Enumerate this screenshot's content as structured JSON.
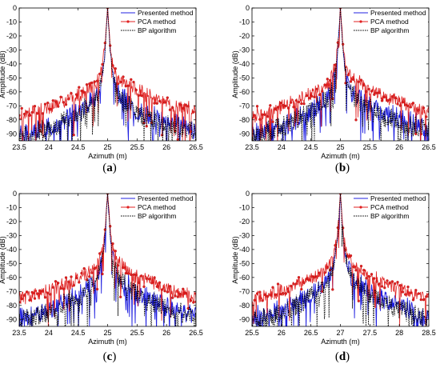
{
  "chart_data": [
    {
      "type": "line",
      "panel_label": "(a)",
      "panel_letter": "a",
      "xlabel": "Azimuth (m)",
      "ylabel": "Amplitude (dB)",
      "xlim": [
        23.5,
        26.5
      ],
      "ylim": [
        -95,
        0
      ],
      "xticks": [
        "23.5",
        "24",
        "24.5",
        "25",
        "25.5",
        "26",
        "26.5"
      ],
      "yticks": [
        "0",
        "-10",
        "-20",
        "-30",
        "-40",
        "-50",
        "-60",
        "-70",
        "-80",
        "-90"
      ],
      "peak": 25,
      "series": [
        {
          "name": "Presented method",
          "color": "#2020e0",
          "style": "solid",
          "x": [
            23.5,
            24.0,
            24.5,
            24.8,
            24.9,
            24.95,
            25.0,
            25.05,
            25.1,
            25.2,
            25.5,
            26.0,
            26.5
          ],
          "y": [
            -84,
            -78,
            -68,
            -57,
            -45,
            -32,
            0,
            -32,
            -45,
            -55,
            -66,
            -74,
            -80
          ]
        },
        {
          "name": "PCA method",
          "color": "#e02020",
          "style": "markers",
          "x": [
            23.5,
            24.0,
            24.5,
            24.8,
            24.9,
            24.95,
            25.0,
            25.05,
            25.1,
            25.2,
            25.5,
            26.0,
            26.5
          ],
          "y": [
            -72,
            -67,
            -58,
            -50,
            -40,
            -28,
            0,
            -29,
            -40,
            -47,
            -55,
            -63,
            -69
          ]
        },
        {
          "name": "BP algorithm",
          "color": "#000000",
          "style": "dotted",
          "x": [
            23.5,
            24.0,
            24.5,
            24.8,
            24.9,
            24.95,
            25.0,
            25.05,
            25.1,
            25.2,
            25.5,
            26.0,
            26.5
          ],
          "y": [
            -86,
            -79,
            -69,
            -58,
            -46,
            -33,
            0,
            -33,
            -46,
            -57,
            -68,
            -76,
            -82
          ]
        }
      ]
    },
    {
      "type": "line",
      "panel_label": "(b)",
      "panel_letter": "b",
      "xlabel": "Azimuth (m)",
      "ylabel": "Amplitude (dB)",
      "xlim": [
        23.5,
        26.5
      ],
      "ylim": [
        -95,
        0
      ],
      "xticks": [
        "23.5",
        "24",
        "24.5",
        "25",
        "25.5",
        "26",
        "26.5"
      ],
      "yticks": [
        "0",
        "-10",
        "-20",
        "-30",
        "-40",
        "-50",
        "-60",
        "-70",
        "-80",
        "-90"
      ],
      "peak": 25,
      "series": [
        {
          "name": "Presented method",
          "color": "#2020e0",
          "style": "solid",
          "x": [
            23.5,
            24.0,
            24.5,
            24.8,
            24.9,
            24.95,
            25.0,
            25.05,
            25.1,
            25.2,
            25.5,
            26.0,
            26.5
          ],
          "y": [
            -83,
            -77,
            -67,
            -56,
            -44,
            -31,
            0,
            -31,
            -44,
            -54,
            -64,
            -72,
            -79
          ]
        },
        {
          "name": "PCA method",
          "color": "#e02020",
          "style": "markers",
          "x": [
            23.5,
            24.0,
            24.5,
            24.8,
            24.9,
            24.95,
            25.0,
            25.05,
            25.1,
            25.2,
            25.5,
            26.0,
            26.5
          ],
          "y": [
            -73,
            -66,
            -57,
            -49,
            -39,
            -27,
            0,
            -28,
            -39,
            -46,
            -54,
            -63,
            -70
          ]
        },
        {
          "name": "BP algorithm",
          "color": "#000000",
          "style": "dotted",
          "x": [
            23.5,
            24.0,
            24.5,
            24.8,
            24.9,
            24.95,
            25.0,
            25.05,
            25.1,
            25.2,
            25.5,
            26.0,
            26.5
          ],
          "y": [
            -85,
            -78,
            -68,
            -57,
            -45,
            -32,
            0,
            -32,
            -45,
            -56,
            -66,
            -75,
            -81
          ]
        }
      ]
    },
    {
      "type": "line",
      "panel_label": "(c)",
      "panel_letter": "c",
      "xlabel": "Azimuth (m)",
      "ylabel": "Amplitude (dB)",
      "xlim": [
        23.5,
        26.5
      ],
      "ylim": [
        -95,
        0
      ],
      "xticks": [
        "23.5",
        "24",
        "24.5",
        "25",
        "25.5",
        "26",
        "26.5"
      ],
      "yticks": [
        "0",
        "-10",
        "-20",
        "-30",
        "-40",
        "-50",
        "-60",
        "-70",
        "-80",
        "-90"
      ],
      "peak": 25,
      "series": [
        {
          "name": "Presented method",
          "color": "#2020e0",
          "style": "solid",
          "x": [
            23.5,
            24.0,
            24.5,
            24.8,
            24.9,
            24.95,
            25.0,
            25.05,
            25.1,
            25.2,
            25.5,
            26.0,
            26.5
          ],
          "y": [
            -82,
            -76,
            -66,
            -55,
            -43,
            -30,
            0,
            -30,
            -43,
            -54,
            -64,
            -73,
            -80
          ]
        },
        {
          "name": "PCA method",
          "color": "#e02020",
          "style": "markers",
          "x": [
            23.5,
            24.0,
            24.5,
            24.8,
            24.9,
            24.95,
            25.0,
            25.05,
            25.1,
            25.2,
            25.5,
            26.0,
            26.5
          ],
          "y": [
            -71,
            -65,
            -57,
            -48,
            -38,
            -27,
            0,
            -27,
            -38,
            -46,
            -55,
            -63,
            -70
          ]
        },
        {
          "name": "BP algorithm",
          "color": "#000000",
          "style": "dotted",
          "x": [
            23.5,
            24.0,
            24.5,
            24.8,
            24.9,
            24.95,
            25.0,
            25.05,
            25.1,
            25.2,
            25.5,
            26.0,
            26.5
          ],
          "y": [
            -84,
            -78,
            -67,
            -56,
            -44,
            -31,
            0,
            -31,
            -44,
            -55,
            -66,
            -75,
            -82
          ]
        }
      ]
    },
    {
      "type": "line",
      "panel_label": "(d)",
      "panel_letter": "d",
      "xlabel": "Azimuth (m)",
      "ylabel": "Amplitude (dB)",
      "xlim": [
        25.5,
        28.5
      ],
      "ylim": [
        -95,
        0
      ],
      "xticks": [
        "25.5",
        "26",
        "26.5",
        "27",
        "27.5",
        "28",
        "28.5"
      ],
      "yticks": [
        "0",
        "-10",
        "-20",
        "-30",
        "-40",
        "-50",
        "-60",
        "-70",
        "-80",
        "-90"
      ],
      "peak": 27,
      "series": [
        {
          "name": "Presented method",
          "color": "#2020e0",
          "style": "solid",
          "x": [
            25.5,
            26.0,
            26.5,
            26.8,
            26.9,
            26.95,
            27.0,
            27.05,
            27.1,
            27.2,
            27.5,
            28.0,
            28.5
          ],
          "y": [
            -82,
            -76,
            -66,
            -55,
            -43,
            -30,
            0,
            -30,
            -43,
            -54,
            -64,
            -74,
            -81
          ]
        },
        {
          "name": "PCA method",
          "color": "#e02020",
          "style": "markers",
          "x": [
            25.5,
            26.0,
            26.5,
            26.8,
            26.9,
            26.95,
            27.0,
            27.05,
            27.1,
            27.2,
            27.5,
            28.0,
            28.5
          ],
          "y": [
            -72,
            -65,
            -56,
            -48,
            -38,
            -27,
            0,
            -27,
            -38,
            -46,
            -55,
            -64,
            -71
          ]
        },
        {
          "name": "BP algorithm",
          "color": "#000000",
          "style": "dotted",
          "x": [
            25.5,
            26.0,
            26.5,
            26.8,
            26.9,
            26.95,
            27.0,
            27.05,
            27.1,
            27.2,
            27.5,
            28.0,
            28.5
          ],
          "y": [
            -84,
            -78,
            -67,
            -56,
            -44,
            -31,
            0,
            -31,
            -44,
            -55,
            -66,
            -76,
            -83
          ]
        }
      ]
    }
  ]
}
